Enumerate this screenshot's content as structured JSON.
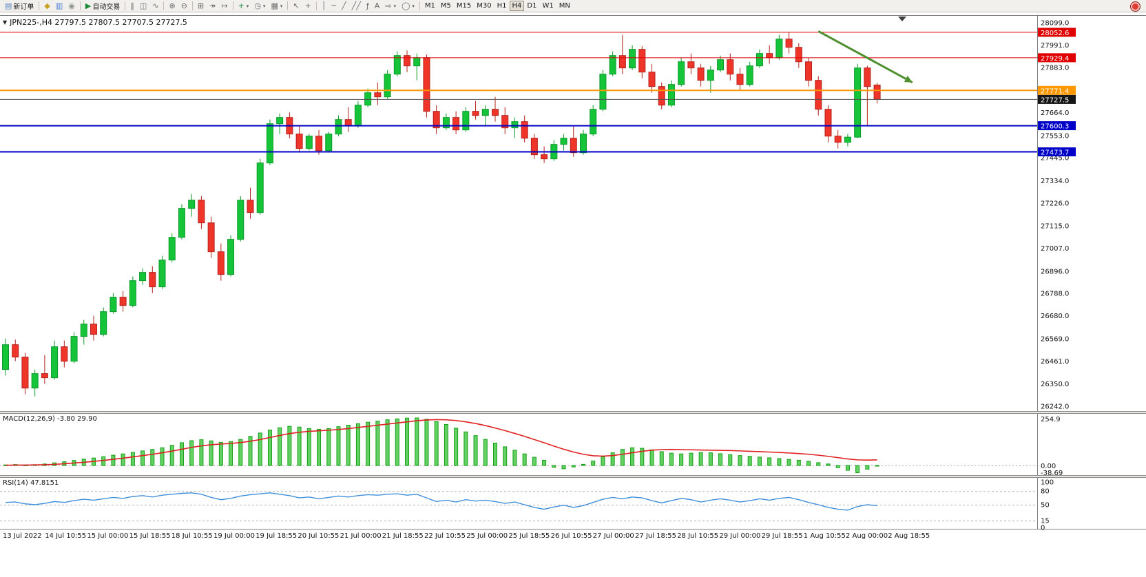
{
  "toolbar": {
    "groups": [
      {
        "items": [
          {
            "name": "new-order",
            "glyph": "▤",
            "glyph_color": "#5b7fbd",
            "label": "新订单"
          }
        ]
      },
      {
        "items": [
          {
            "name": "market-watch",
            "glyph": "◆",
            "glyph_color": "#c9a227"
          },
          {
            "name": "data-window",
            "glyph": "▥",
            "glyph_color": "#4a7dd4"
          },
          {
            "name": "navigator",
            "glyph": "◉",
            "glyph_color": "#8f958f"
          }
        ]
      },
      {
        "items": [
          {
            "name": "auto-trading",
            "glyph": "▶",
            "glyph_color": "#1d8a3a",
            "label": "自动交易"
          }
        ]
      },
      {
        "items": [
          {
            "name": "bars-chart",
            "glyph": "‖"
          },
          {
            "name": "candlestick-chart",
            "glyph": "◫"
          },
          {
            "name": "line-chart",
            "glyph": "∿"
          }
        ]
      },
      {
        "items": [
          {
            "name": "zoom-in",
            "glyph": "⊕"
          },
          {
            "name": "zoom-out",
            "glyph": "⊖"
          }
        ]
      },
      {
        "items": [
          {
            "name": "tile-windows",
            "glyph": "⊞"
          },
          {
            "name": "auto-scroll",
            "glyph": "↠"
          },
          {
            "name": "chart-shift",
            "glyph": "↦"
          }
        ]
      },
      {
        "items": [
          {
            "name": "indicators",
            "glyph": "+",
            "glyph_color": "#1d8a3a",
            "caret": true
          },
          {
            "name": "periods",
            "glyph": "◷",
            "caret": true
          },
          {
            "name": "templates",
            "glyph": "▦",
            "caret": true
          }
        ]
      },
      {
        "items": [
          {
            "name": "cursor",
            "glyph": "↖"
          },
          {
            "name": "crosshair",
            "glyph": "+"
          }
        ]
      },
      {
        "items": [
          {
            "name": "vertical-line",
            "glyph": "│"
          },
          {
            "name": "horizontal-line",
            "glyph": "─"
          },
          {
            "name": "trend-line",
            "glyph": "╱"
          },
          {
            "name": "equidistant-channel",
            "glyph": "╱╱"
          },
          {
            "name": "fibonacci",
            "glyph": "ƒ"
          },
          {
            "name": "text-label",
            "glyph": "A"
          },
          {
            "name": "arrows",
            "glyph": "⇨",
            "caret": true
          },
          {
            "name": "shapes",
            "glyph": "◯",
            "caret": true
          }
        ]
      },
      {
        "items": [
          {
            "name": "timeframe-m1",
            "label": "M1"
          },
          {
            "name": "timeframe-m5",
            "label": "M5"
          },
          {
            "name": "timeframe-m15",
            "label": "M15"
          },
          {
            "name": "timeframe-m30",
            "label": "M30"
          },
          {
            "name": "timeframe-h1",
            "label": "H1"
          },
          {
            "name": "timeframe-h4",
            "label": "H4",
            "active": true
          },
          {
            "name": "timeframe-d1",
            "label": "D1"
          },
          {
            "name": "timeframe-w1",
            "label": "W1"
          },
          {
            "name": "timeframe-mn",
            "label": "MN"
          }
        ]
      }
    ]
  },
  "chart": {
    "title": "JPN225-,H4  27797.5 27807.5 27707.5 27727.5",
    "dropdown_glyph": "▼"
  },
  "indicators": {
    "macd_label": "MACD(12,26,9) -3.80 29.90",
    "rsi_label": "RSI(14) 47.8151"
  },
  "chart_data": {
    "type": "candlestick",
    "symbol": "JPN225-",
    "timeframe": "H4",
    "last_ohlc": {
      "open": 27797.5,
      "high": 27807.5,
      "low": 27707.5,
      "close": 27727.5
    },
    "x_labels": [
      "13 Jul 2022",
      "14 Jul 10:55",
      "15 Jul 00:00",
      "15 Jul 18:55",
      "18 Jul 10:55",
      "19 Jul 00:00",
      "19 Jul 18:55",
      "20 Jul 10:55",
      "21 Jul 00:00",
      "21 Jul 18:55",
      "22 Jul 10:55",
      "25 Jul 00:00",
      "25 Jul 18:55",
      "26 Jul 10:55",
      "27 Jul 00:00",
      "27 Jul 18:55",
      "28 Jul 10:55",
      "29 Jul 00:00",
      "29 Jul 18:55",
      "1 Aug 10:55",
      "2 Aug 00:00",
      "2 Aug 18:55"
    ],
    "y_axis": {
      "max": 28099.0,
      "min": 26242.0,
      "ticks": [
        28099.0,
        27991.0,
        27883.0,
        27664.0,
        27553.0,
        27445.0,
        27334.0,
        27226.0,
        27115.0,
        27007.0,
        26896.0,
        26788.0,
        26680.0,
        26569.0,
        26461.0,
        26350.0,
        26242.0
      ]
    },
    "candles": [
      [
        26420,
        26570,
        26390,
        26540
      ],
      [
        26540,
        26565,
        26460,
        26480
      ],
      [
        26480,
        26500,
        26300,
        26330
      ],
      [
        26330,
        26420,
        26290,
        26400
      ],
      [
        26400,
        26490,
        26350,
        26380
      ],
      [
        26380,
        26560,
        26370,
        26530
      ],
      [
        26530,
        26560,
        26430,
        26460
      ],
      [
        26460,
        26600,
        26450,
        26580
      ],
      [
        26580,
        26660,
        26540,
        26640
      ],
      [
        26640,
        26680,
        26560,
        26590
      ],
      [
        26590,
        26720,
        26580,
        26700
      ],
      [
        26700,
        26790,
        26690,
        26770
      ],
      [
        26770,
        26800,
        26700,
        26730
      ],
      [
        26730,
        26870,
        26720,
        26850
      ],
      [
        26850,
        26910,
        26830,
        26890
      ],
      [
        26890,
        26920,
        26790,
        26820
      ],
      [
        26820,
        26970,
        26810,
        26950
      ],
      [
        26950,
        27080,
        26940,
        27060
      ],
      [
        27060,
        27220,
        27050,
        27200
      ],
      [
        27200,
        27270,
        27160,
        27240
      ],
      [
        27240,
        27260,
        27100,
        27130
      ],
      [
        27130,
        27160,
        26960,
        26990
      ],
      [
        26990,
        27030,
        26850,
        26880
      ],
      [
        26880,
        27070,
        26870,
        27050
      ],
      [
        27050,
        27260,
        27040,
        27240
      ],
      [
        27240,
        27300,
        27150,
        27180
      ],
      [
        27180,
        27440,
        27170,
        27420
      ],
      [
        27420,
        27630,
        27410,
        27610
      ],
      [
        27610,
        27660,
        27560,
        27640
      ],
      [
        27640,
        27665,
        27540,
        27560
      ],
      [
        27560,
        27600,
        27470,
        27490
      ],
      [
        27490,
        27560,
        27480,
        27550
      ],
      [
        27550,
        27580,
        27460,
        27480
      ],
      [
        27480,
        27570,
        27470,
        27560
      ],
      [
        27560,
        27650,
        27550,
        27630
      ],
      [
        27630,
        27690,
        27570,
        27600
      ],
      [
        27600,
        27720,
        27590,
        27700
      ],
      [
        27700,
        27780,
        27690,
        27760
      ],
      [
        27760,
        27810,
        27700,
        27740
      ],
      [
        27740,
        27870,
        27730,
        27850
      ],
      [
        27850,
        27960,
        27840,
        27940
      ],
      [
        27940,
        27965,
        27860,
        27890
      ],
      [
        27890,
        27950,
        27820,
        27930
      ],
      [
        27930,
        27945,
        27640,
        27670
      ],
      [
        27670,
        27700,
        27560,
        27590
      ],
      [
        27590,
        27660,
        27580,
        27640
      ],
      [
        27640,
        27670,
        27560,
        27580
      ],
      [
        27580,
        27690,
        27570,
        27670
      ],
      [
        27670,
        27720,
        27630,
        27650
      ],
      [
        27650,
        27700,
        27600,
        27680
      ],
      [
        27680,
        27740,
        27620,
        27650
      ],
      [
        27650,
        27690,
        27560,
        27590
      ],
      [
        27590,
        27640,
        27540,
        27620
      ],
      [
        27620,
        27650,
        27520,
        27540
      ],
      [
        27540,
        27560,
        27440,
        27460
      ],
      [
        27460,
        27500,
        27420,
        27440
      ],
      [
        27440,
        27530,
        27430,
        27510
      ],
      [
        27510,
        27560,
        27480,
        27540
      ],
      [
        27540,
        27600,
        27450,
        27470
      ],
      [
        27470,
        27580,
        27460,
        27560
      ],
      [
        27560,
        27700,
        27550,
        27680
      ],
      [
        27680,
        27870,
        27670,
        27850
      ],
      [
        27850,
        27960,
        27840,
        27940
      ],
      [
        27940,
        28040,
        27850,
        27880
      ],
      [
        27880,
        27990,
        27870,
        27970
      ],
      [
        27970,
        27985,
        27830,
        27860
      ],
      [
        27860,
        27900,
        27760,
        27790
      ],
      [
        27790,
        27810,
        27680,
        27700
      ],
      [
        27700,
        27820,
        27690,
        27800
      ],
      [
        27800,
        27930,
        27790,
        27910
      ],
      [
        27910,
        27950,
        27850,
        27880
      ],
      [
        27880,
        27900,
        27790,
        27820
      ],
      [
        27820,
        27890,
        27760,
        27870
      ],
      [
        27870,
        27940,
        27860,
        27920
      ],
      [
        27920,
        27950,
        27820,
        27850
      ],
      [
        27850,
        27880,
        27770,
        27800
      ],
      [
        27800,
        27910,
        27790,
        27890
      ],
      [
        27890,
        27970,
        27880,
        27950
      ],
      [
        27950,
        27990,
        27900,
        27930
      ],
      [
        27930,
        28040,
        27920,
        28020
      ],
      [
        28020,
        28055,
        27950,
        27980
      ],
      [
        27980,
        28000,
        27880,
        27910
      ],
      [
        27910,
        27930,
        27790,
        27820
      ],
      [
        27820,
        27840,
        27650,
        27680
      ],
      [
        27680,
        27700,
        27520,
        27550
      ],
      [
        27550,
        27580,
        27490,
        27520
      ],
      [
        27520,
        27560,
        27500,
        27545
      ],
      [
        27545,
        27900,
        27540,
        27880
      ],
      [
        27880,
        27890,
        27600,
        27790
      ],
      [
        27797.5,
        27807.5,
        27707.5,
        27727.5
      ]
    ],
    "hlines": [
      {
        "price": 28052.6,
        "color": "#e00000",
        "width": 1
      },
      {
        "price": 27929.4,
        "color": "#e00000",
        "width": 1
      },
      {
        "price": 27771.4,
        "color": "#ff9800",
        "width": 2
      },
      {
        "price": 27600.3,
        "color": "#0000c8",
        "width": 2
      },
      {
        "price": 27473.7,
        "color": "#0000c8",
        "width": 2
      }
    ],
    "current_price": 27727.5,
    "trend_arrow": {
      "from": {
        "bar": 83,
        "price": 28058
      },
      "to": {
        "bar": 92.6,
        "price": 27810
      },
      "color": "#4e8f2f"
    },
    "macd": {
      "params": "12,26,9",
      "value": -3.8,
      "signal_value": 29.9,
      "scale": {
        "max": 254.9,
        "min": -38.69
      },
      "histogram": [
        3,
        5,
        2,
        4,
        8,
        14,
        20,
        27,
        34,
        40,
        47,
        55,
        62,
        70,
        78,
        86,
        95,
        108,
        122,
        133,
        138,
        132,
        124,
        128,
        140,
        156,
        174,
        190,
        202,
        210,
        206,
        198,
        194,
        198,
        208,
        216,
        224,
        232,
        238,
        245,
        250,
        254,
        254.9,
        248,
        236,
        220,
        200,
        180,
        160,
        140,
        120,
        100,
        82,
        62,
        44,
        28,
        -10,
        -18,
        -8,
        6,
        24,
        46,
        68,
        86,
        95,
        92,
        84,
        74,
        66,
        62,
        66,
        70,
        68,
        63,
        58,
        53,
        49,
        45,
        41,
        37,
        32,
        28,
        22,
        15,
        8,
        -12,
        -26,
        -38.69,
        -20,
        -3.8
      ],
      "signal": [
        1,
        2,
        2,
        3,
        4,
        6,
        9,
        13,
        17,
        22,
        27,
        33,
        39,
        46,
        53,
        60,
        68,
        77,
        87,
        97,
        105,
        111,
        115,
        118,
        123,
        130,
        139,
        150,
        161,
        171,
        178,
        183,
        186,
        189,
        193,
        198,
        204,
        210,
        216,
        222,
        228,
        234,
        240,
        244,
        246,
        245,
        241,
        234,
        225,
        214,
        201,
        187,
        172,
        156,
        139,
        122,
        104,
        87,
        72,
        60,
        52,
        50,
        53,
        60,
        68,
        76,
        82,
        85,
        86,
        85,
        84,
        83,
        82,
        81,
        80,
        78,
        76,
        74,
        72,
        70,
        67,
        64,
        60,
        55,
        49,
        42,
        35,
        30,
        29,
        29.9
      ]
    },
    "rsi": {
      "params": "14",
      "value": 47.8151,
      "levels": [
        80,
        50,
        15
      ],
      "scale_labels": [
        100,
        80,
        50,
        15,
        0
      ],
      "values": [
        55,
        56,
        52,
        50,
        53,
        57,
        55,
        59,
        62,
        60,
        63,
        66,
        64,
        68,
        70,
        67,
        71,
        73,
        75,
        76,
        73,
        66,
        61,
        64,
        69,
        72,
        74,
        76,
        73,
        70,
        65,
        67,
        63,
        66,
        69,
        67,
        70,
        72,
        71,
        73,
        74,
        71,
        73,
        65,
        57,
        60,
        56,
        61,
        58,
        60,
        57,
        53,
        56,
        50,
        44,
        40,
        45,
        49,
        44,
        48,
        55,
        62,
        66,
        63,
        67,
        65,
        59,
        54,
        59,
        64,
        61,
        56,
        60,
        63,
        60,
        56,
        59,
        63,
        60,
        64,
        66,
        61,
        55,
        50,
        44,
        40,
        38,
        46,
        50,
        47.8
      ]
    }
  }
}
